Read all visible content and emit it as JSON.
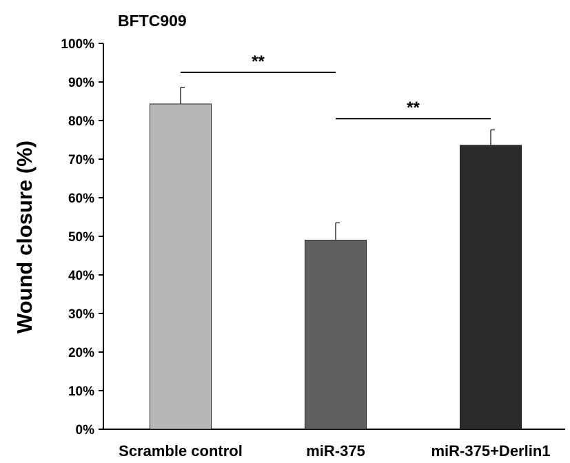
{
  "chart_data": {
    "type": "bar",
    "title": "BFTC909",
    "xlabel": "",
    "ylabel": "Wound closure (%)",
    "ylim": [
      0,
      100
    ],
    "yticks": [
      "0%",
      "10%",
      "20%",
      "30%",
      "40%",
      "50%",
      "60%",
      "70%",
      "80%",
      "90%",
      "100%"
    ],
    "categories": [
      "Scramble control",
      "miR-375",
      "miR-375+Derlin1"
    ],
    "values": [
      84.3,
      49.0,
      73.6
    ],
    "errors": [
      4.3,
      4.5,
      4.0
    ],
    "colors": [
      "#b7b7b7",
      "#5f5f5f",
      "#2b2b2b"
    ],
    "grid": false,
    "legend": "none",
    "significance": [
      {
        "from": 0,
        "to": 1,
        "label": "**",
        "y": 92.5
      },
      {
        "from": 1,
        "to": 2,
        "label": "**",
        "y": 80.5
      }
    ]
  }
}
